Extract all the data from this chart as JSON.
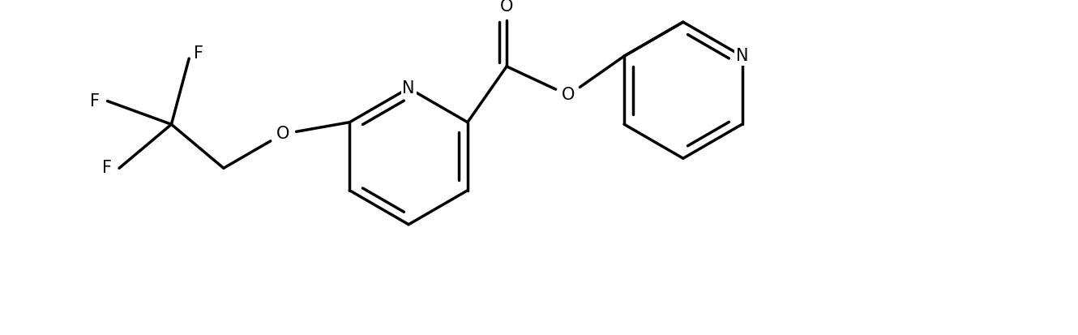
{
  "bg_color": "#ffffff",
  "line_color": "#000000",
  "line_width": 2.5,
  "font_size": 15,
  "figsize": [
    13.3,
    4.13
  ],
  "dpi": 100,
  "xlim": [
    0,
    13.3
  ],
  "ylim": [
    0,
    4.13
  ]
}
